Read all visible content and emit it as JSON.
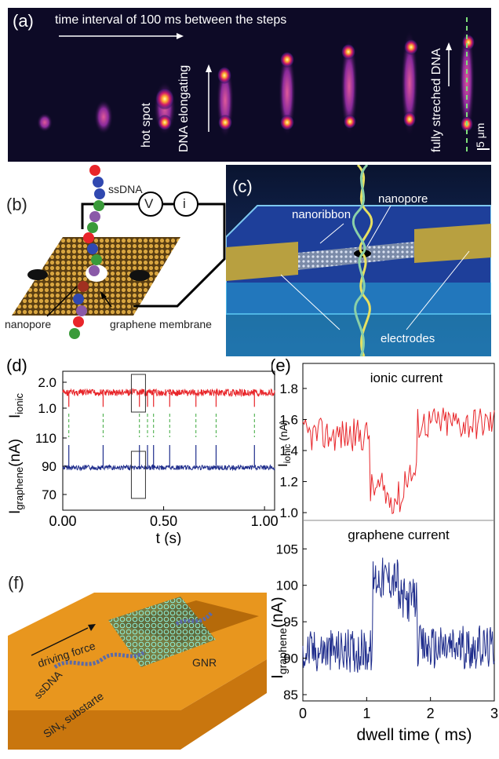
{
  "panel_a": {
    "label": "(a)",
    "arrow_text": "time interval of 100 ms between the steps",
    "hot_spot": "hot spot",
    "elongating": "DNA elongating",
    "stretched": "fully streched DNA",
    "scalebar": "5 μm"
  },
  "panel_b": {
    "label": "(b)",
    "ssdna": "ssDNA",
    "v": "V",
    "i": "i",
    "nanopore": "nanopore",
    "membrane": "graphene membrane"
  },
  "panel_c": {
    "label": "(c)",
    "nanoribbon": "nanoribbon",
    "nanopore": "nanopore",
    "electrodes": "electrodes"
  },
  "panel_d": {
    "label": "(d)",
    "ylabel_top": "I",
    "ylabel_top_sub": "ionic",
    "ylabel_bottom": "I",
    "ylabel_bottom_sub": "graphene",
    "ylabel_bottom_unit": "(nA)",
    "ylabel_top_unit": "(nA)",
    "xlabel": "t (s)",
    "xticks": [
      "0.00",
      "0.50",
      "1.00"
    ],
    "yticks_top": [
      "2.0",
      "1.0"
    ],
    "yticks_bottom": [
      "110",
      "90",
      "70"
    ]
  },
  "panel_e": {
    "label": "(e)",
    "title_top": "ionic current",
    "title_bottom": "graphene current",
    "ylabel_top": "I",
    "ylabel_top_sub": "ionic",
    "ylabel_top_unit": "(nA)",
    "ylabel_bottom": "I",
    "ylabel_bottom_sub": "graphene",
    "ylabel_bottom_unit": "(nA)",
    "xlabel": "dwell time ( ms)",
    "xticks": [
      "0",
      "1",
      "2",
      "3"
    ],
    "yticks_top": [
      "1.8",
      "1.6",
      "1.4",
      "1.2",
      "1.0"
    ],
    "yticks_bottom": [
      "105",
      "100",
      "95",
      "90",
      "85"
    ]
  },
  "panel_f": {
    "label": "(f)",
    "driving": "driving force",
    "ssdna": "ssDNA",
    "gnr": "GNR",
    "substrate": "SiN",
    "substrate_sub": "x",
    "substrate_rest": " substarte"
  },
  "chart_data": [
    {
      "type": "line",
      "panel": "d",
      "x": [
        0.0,
        0.03,
        0.2,
        0.38,
        0.42,
        0.45,
        0.53,
        0.66,
        0.76,
        0.95,
        1.02
      ],
      "series": [
        {
          "values": [
            1.6,
            1.6,
            1.6,
            1.6,
            1.6,
            1.6,
            1.6,
            1.6,
            1.6,
            1.6,
            1.6
          ]
        },
        {
          "values": [
            89,
            89,
            89,
            89,
            89,
            89,
            89,
            89,
            89,
            89,
            89
          ]
        }
      ],
      "xlim": [
        0,
        1.05
      ],
      "xlabel": "t (s)",
      "color_top": "#e8262a",
      "color_bottom": "#1f2d8c"
    },
    {
      "type": "line",
      "panel": "e",
      "x": [
        0.0,
        0.5,
        1.0,
        1.2,
        1.5,
        1.8,
        2.0,
        2.5,
        3.0
      ],
      "series": [
        {
          "name": "ionic current",
          "values": [
            1.5,
            1.55,
            1.5,
            1.15,
            1.1,
            1.3,
            1.55,
            1.6,
            1.6
          ]
        },
        {
          "name": "graphene current",
          "values": [
            91,
            91,
            91,
            101,
            100,
            98,
            92,
            91,
            91
          ]
        }
      ],
      "xlim": [
        0,
        3
      ],
      "ylim_top": [
        0.95,
        1.85
      ],
      "ylim_bottom": [
        85,
        106
      ],
      "xlabel": "dwell time ( ms)",
      "color_top": "#e8262a",
      "color_bottom": "#1f2d8c"
    }
  ]
}
